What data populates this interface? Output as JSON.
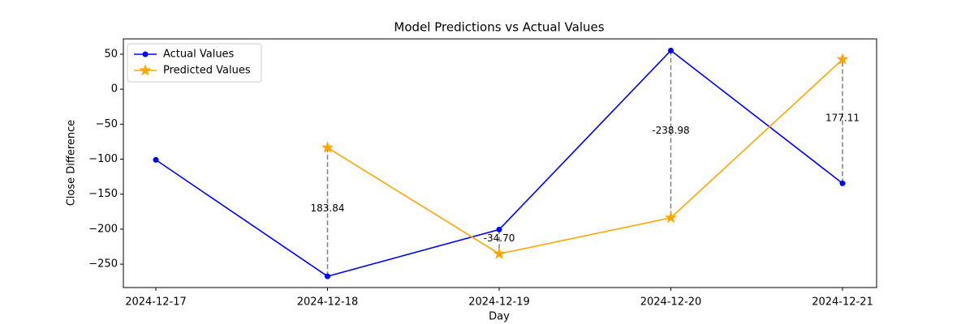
{
  "chart_data": {
    "type": "line",
    "title": "Model Predictions vs Actual Values",
    "xlabel": "Day",
    "ylabel": "Close Difference",
    "categories": [
      "2024-12-17",
      "2024-12-18",
      "2024-12-19",
      "2024-12-20",
      "2024-12-21"
    ],
    "series": [
      {
        "name": "Actual Values",
        "color": "#0000ff",
        "marker": "circle",
        "values": [
          -101,
          -267.3,
          -200.5,
          55.3,
          -134.5
        ]
      },
      {
        "name": "Predicted Values",
        "color": "#ffa500",
        "marker": "star",
        "values": [
          null,
          -83.5,
          -235.2,
          -183.7,
          42.6
        ]
      }
    ],
    "differences": [
      null,
      183.84,
      -34.7,
      -238.98,
      177.11
    ],
    "difference_labels": [
      null,
      "183.84",
      "-34.70",
      "-238.98",
      "177.11"
    ],
    "ylim": [
      -283.4,
      71.9
    ],
    "yticks": [
      {
        "value": -250,
        "label": "−250"
      },
      {
        "value": -200,
        "label": "−200"
      },
      {
        "value": -150,
        "label": "−150"
      },
      {
        "value": -100,
        "label": "−100"
      },
      {
        "value": -50,
        "label": "−50"
      },
      0,
      50
    ],
    "legend": "upper left",
    "grid": false
  }
}
